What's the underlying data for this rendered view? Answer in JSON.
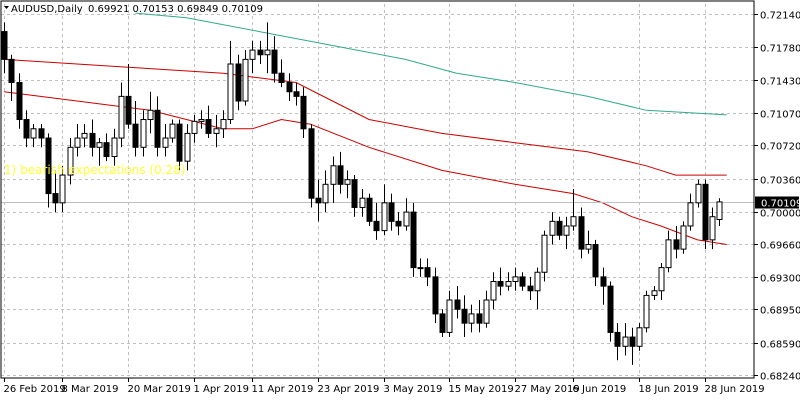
{
  "window": {
    "title_symbol": "AUDUSD,Daily",
    "ohlc_text": "0.69921 0.70153 0.69849 0.70109"
  },
  "indicator_text": "1) bearish expectations (0.28)",
  "current_price_label": "0.70109",
  "colors": {
    "background": "#ffffff",
    "grid": "#c0c0c0",
    "frame": "#000000",
    "bull_fill": "#ffffff",
    "bear_fill": "#000000",
    "candle_stroke": "#000000",
    "ma_fast": "#cc0000",
    "ma_mid": "#cc0000",
    "ma_slow": "#33aa88",
    "indicator_text": "#ffff33",
    "price_line": "#c0c0c0"
  },
  "chart_data": {
    "type": "candlestick",
    "y_ticks": [
      "0.72140",
      "0.71780",
      "0.71430",
      "0.71070",
      "0.70720",
      "0.70360",
      "0.70000",
      "0.69660",
      "0.69300",
      "0.68950",
      "0.68590",
      "0.68240"
    ],
    "ylim": [
      0.6824,
      0.7214
    ],
    "x_tick_labels": [
      "26 Feb 2019",
      "8 Mar 2019",
      "20 Mar 2019",
      "1 Apr 2019",
      "11 Apr 2019",
      "23 Apr 2019",
      "3 May 2019",
      "15 May 2019",
      "27 May 2019",
      "6 Jun 2019",
      "18 Jun 2019",
      "28 Jun 2019"
    ],
    "x_tick_bar_index": [
      0,
      8,
      17,
      26,
      34,
      43,
      52,
      61,
      70,
      78,
      87,
      96
    ],
    "candles": [
      {
        "o": 0.7195,
        "h": 0.7205,
        "l": 0.715,
        "c": 0.7165
      },
      {
        "o": 0.7165,
        "h": 0.717,
        "l": 0.712,
        "c": 0.714
      },
      {
        "o": 0.714,
        "h": 0.715,
        "l": 0.709,
        "c": 0.71
      },
      {
        "o": 0.71,
        "h": 0.711,
        "l": 0.707,
        "c": 0.708
      },
      {
        "o": 0.708,
        "h": 0.7095,
        "l": 0.707,
        "c": 0.709
      },
      {
        "o": 0.709,
        "h": 0.7095,
        "l": 0.707,
        "c": 0.708
      },
      {
        "o": 0.708,
        "h": 0.7085,
        "l": 0.7005,
        "c": 0.702
      },
      {
        "o": 0.702,
        "h": 0.7045,
        "l": 0.7,
        "c": 0.701
      },
      {
        "o": 0.701,
        "h": 0.705,
        "l": 0.7,
        "c": 0.704
      },
      {
        "o": 0.704,
        "h": 0.708,
        "l": 0.703,
        "c": 0.707
      },
      {
        "o": 0.707,
        "h": 0.7095,
        "l": 0.706,
        "c": 0.708
      },
      {
        "o": 0.708,
        "h": 0.7095,
        "l": 0.707,
        "c": 0.7085
      },
      {
        "o": 0.7085,
        "h": 0.71,
        "l": 0.706,
        "c": 0.707
      },
      {
        "o": 0.707,
        "h": 0.708,
        "l": 0.705,
        "c": 0.7075
      },
      {
        "o": 0.7075,
        "h": 0.7085,
        "l": 0.7055,
        "c": 0.706
      },
      {
        "o": 0.706,
        "h": 0.709,
        "l": 0.705,
        "c": 0.708
      },
      {
        "o": 0.708,
        "h": 0.714,
        "l": 0.707,
        "c": 0.7125
      },
      {
        "o": 0.7125,
        "h": 0.716,
        "l": 0.709,
        "c": 0.7095
      },
      {
        "o": 0.7095,
        "h": 0.712,
        "l": 0.706,
        "c": 0.707
      },
      {
        "o": 0.707,
        "h": 0.711,
        "l": 0.706,
        "c": 0.71
      },
      {
        "o": 0.71,
        "h": 0.713,
        "l": 0.7085,
        "c": 0.711
      },
      {
        "o": 0.711,
        "h": 0.7125,
        "l": 0.706,
        "c": 0.707
      },
      {
        "o": 0.707,
        "h": 0.7095,
        "l": 0.706,
        "c": 0.708
      },
      {
        "o": 0.708,
        "h": 0.71,
        "l": 0.7075,
        "c": 0.7095
      },
      {
        "o": 0.7095,
        "h": 0.71,
        "l": 0.7045,
        "c": 0.7055
      },
      {
        "o": 0.7055,
        "h": 0.7095,
        "l": 0.7045,
        "c": 0.7085
      },
      {
        "o": 0.7085,
        "h": 0.7105,
        "l": 0.7075,
        "c": 0.7098
      },
      {
        "o": 0.7098,
        "h": 0.711,
        "l": 0.709,
        "c": 0.71
      },
      {
        "o": 0.71,
        "h": 0.7115,
        "l": 0.708,
        "c": 0.7085
      },
      {
        "o": 0.7085,
        "h": 0.7105,
        "l": 0.707,
        "c": 0.709
      },
      {
        "o": 0.709,
        "h": 0.711,
        "l": 0.708,
        "c": 0.71
      },
      {
        "o": 0.71,
        "h": 0.7185,
        "l": 0.7095,
        "c": 0.716
      },
      {
        "o": 0.716,
        "h": 0.717,
        "l": 0.711,
        "c": 0.712
      },
      {
        "o": 0.712,
        "h": 0.7175,
        "l": 0.7115,
        "c": 0.7165
      },
      {
        "o": 0.7165,
        "h": 0.7185,
        "l": 0.715,
        "c": 0.7175
      },
      {
        "o": 0.7175,
        "h": 0.7185,
        "l": 0.716,
        "c": 0.717
      },
      {
        "o": 0.717,
        "h": 0.7205,
        "l": 0.715,
        "c": 0.7175
      },
      {
        "o": 0.7175,
        "h": 0.719,
        "l": 0.714,
        "c": 0.715
      },
      {
        "o": 0.715,
        "h": 0.7165,
        "l": 0.7135,
        "c": 0.714
      },
      {
        "o": 0.714,
        "h": 0.715,
        "l": 0.712,
        "c": 0.713
      },
      {
        "o": 0.713,
        "h": 0.714,
        "l": 0.7115,
        "c": 0.7125
      },
      {
        "o": 0.7125,
        "h": 0.7135,
        "l": 0.708,
        "c": 0.709
      },
      {
        "o": 0.709,
        "h": 0.7095,
        "l": 0.7005,
        "c": 0.7015
      },
      {
        "o": 0.7015,
        "h": 0.7035,
        "l": 0.699,
        "c": 0.701
      },
      {
        "o": 0.701,
        "h": 0.7045,
        "l": 0.7,
        "c": 0.703
      },
      {
        "o": 0.703,
        "h": 0.706,
        "l": 0.701,
        "c": 0.705
      },
      {
        "o": 0.705,
        "h": 0.7065,
        "l": 0.702,
        "c": 0.703
      },
      {
        "o": 0.703,
        "h": 0.7045,
        "l": 0.7015,
        "c": 0.7035
      },
      {
        "o": 0.7035,
        "h": 0.704,
        "l": 0.6995,
        "c": 0.7005
      },
      {
        "o": 0.7005,
        "h": 0.7025,
        "l": 0.6995,
        "c": 0.7015
      },
      {
        "o": 0.7015,
        "h": 0.702,
        "l": 0.6985,
        "c": 0.699
      },
      {
        "o": 0.699,
        "h": 0.701,
        "l": 0.697,
        "c": 0.698
      },
      {
        "o": 0.698,
        "h": 0.703,
        "l": 0.6975,
        "c": 0.701
      },
      {
        "o": 0.701,
        "h": 0.702,
        "l": 0.698,
        "c": 0.699
      },
      {
        "o": 0.699,
        "h": 0.7,
        "l": 0.6975,
        "c": 0.6985
      },
      {
        "o": 0.6985,
        "h": 0.7015,
        "l": 0.698,
        "c": 0.7
      },
      {
        "o": 0.7,
        "h": 0.701,
        "l": 0.693,
        "c": 0.694
      },
      {
        "o": 0.694,
        "h": 0.695,
        "l": 0.693,
        "c": 0.694
      },
      {
        "o": 0.694,
        "h": 0.695,
        "l": 0.692,
        "c": 0.693
      },
      {
        "o": 0.693,
        "h": 0.694,
        "l": 0.688,
        "c": 0.689
      },
      {
        "o": 0.689,
        "h": 0.6895,
        "l": 0.6865,
        "c": 0.687
      },
      {
        "o": 0.687,
        "h": 0.6915,
        "l": 0.6865,
        "c": 0.6905
      },
      {
        "o": 0.6905,
        "h": 0.692,
        "l": 0.6885,
        "c": 0.6895
      },
      {
        "o": 0.6895,
        "h": 0.691,
        "l": 0.6865,
        "c": 0.688
      },
      {
        "o": 0.688,
        "h": 0.69,
        "l": 0.687,
        "c": 0.689
      },
      {
        "o": 0.689,
        "h": 0.6905,
        "l": 0.687,
        "c": 0.688
      },
      {
        "o": 0.688,
        "h": 0.6915,
        "l": 0.6875,
        "c": 0.6905
      },
      {
        "o": 0.6905,
        "h": 0.6935,
        "l": 0.6895,
        "c": 0.6925
      },
      {
        "o": 0.6925,
        "h": 0.694,
        "l": 0.691,
        "c": 0.692
      },
      {
        "o": 0.692,
        "h": 0.6935,
        "l": 0.6915,
        "c": 0.6925
      },
      {
        "o": 0.6925,
        "h": 0.694,
        "l": 0.6915,
        "c": 0.693
      },
      {
        "o": 0.693,
        "h": 0.6935,
        "l": 0.6915,
        "c": 0.692
      },
      {
        "o": 0.692,
        "h": 0.693,
        "l": 0.6905,
        "c": 0.6915
      },
      {
        "o": 0.6915,
        "h": 0.694,
        "l": 0.6895,
        "c": 0.6935
      },
      {
        "o": 0.6935,
        "h": 0.698,
        "l": 0.6925,
        "c": 0.6975
      },
      {
        "o": 0.6975,
        "h": 0.7,
        "l": 0.6965,
        "c": 0.699
      },
      {
        "o": 0.699,
        "h": 0.6995,
        "l": 0.697,
        "c": 0.6975
      },
      {
        "o": 0.6975,
        "h": 0.6995,
        "l": 0.696,
        "c": 0.6985
      },
      {
        "o": 0.6985,
        "h": 0.7025,
        "l": 0.698,
        "c": 0.6995
      },
      {
        "o": 0.6995,
        "h": 0.7005,
        "l": 0.695,
        "c": 0.696
      },
      {
        "o": 0.696,
        "h": 0.698,
        "l": 0.6955,
        "c": 0.6965
      },
      {
        "o": 0.6965,
        "h": 0.697,
        "l": 0.692,
        "c": 0.693
      },
      {
        "o": 0.693,
        "h": 0.694,
        "l": 0.69,
        "c": 0.692
      },
      {
        "o": 0.692,
        "h": 0.6925,
        "l": 0.686,
        "c": 0.687
      },
      {
        "o": 0.687,
        "h": 0.688,
        "l": 0.684,
        "c": 0.6855
      },
      {
        "o": 0.6855,
        "h": 0.688,
        "l": 0.6845,
        "c": 0.6865
      },
      {
        "o": 0.6865,
        "h": 0.6875,
        "l": 0.6835,
        "c": 0.6855
      },
      {
        "o": 0.6855,
        "h": 0.688,
        "l": 0.685,
        "c": 0.6875
      },
      {
        "o": 0.6875,
        "h": 0.6915,
        "l": 0.687,
        "c": 0.691
      },
      {
        "o": 0.691,
        "h": 0.692,
        "l": 0.6905,
        "c": 0.6915
      },
      {
        "o": 0.6915,
        "h": 0.6945,
        "l": 0.6905,
        "c": 0.694
      },
      {
        "o": 0.694,
        "h": 0.698,
        "l": 0.6935,
        "c": 0.697
      },
      {
        "o": 0.697,
        "h": 0.6985,
        "l": 0.695,
        "c": 0.696
      },
      {
        "o": 0.696,
        "h": 0.699,
        "l": 0.6955,
        "c": 0.6985
      },
      {
        "o": 0.6985,
        "h": 0.702,
        "l": 0.698,
        "c": 0.701
      },
      {
        "o": 0.701,
        "h": 0.7035,
        "l": 0.7005,
        "c": 0.703
      },
      {
        "o": 0.703,
        "h": 0.7035,
        "l": 0.696,
        "c": 0.697
      },
      {
        "o": 0.697,
        "h": 0.7005,
        "l": 0.696,
        "c": 0.6995
      },
      {
        "o": 0.6992,
        "h": 0.7015,
        "l": 0.6985,
        "c": 0.7011
      }
    ],
    "moving_averages": [
      {
        "key": "ma_fast",
        "points": [
          [
            0,
            0.713
          ],
          [
            10,
            0.712
          ],
          [
            20,
            0.711
          ],
          [
            25,
            0.71
          ],
          [
            30,
            0.709
          ],
          [
            34,
            0.709
          ],
          [
            38,
            0.71
          ],
          [
            42,
            0.7095
          ],
          [
            50,
            0.707
          ],
          [
            60,
            0.7045
          ],
          [
            70,
            0.703
          ],
          [
            78,
            0.702
          ],
          [
            82,
            0.701
          ],
          [
            86,
            0.6995
          ],
          [
            90,
            0.6985
          ],
          [
            95,
            0.697
          ],
          [
            99,
            0.6965
          ]
        ]
      },
      {
        "key": "ma_mid",
        "points": [
          [
            0,
            0.7165
          ],
          [
            10,
            0.716
          ],
          [
            20,
            0.7155
          ],
          [
            30,
            0.715
          ],
          [
            35,
            0.7145
          ],
          [
            40,
            0.714
          ],
          [
            45,
            0.712
          ],
          [
            50,
            0.71
          ],
          [
            60,
            0.7085
          ],
          [
            70,
            0.7075
          ],
          [
            80,
            0.7065
          ],
          [
            88,
            0.705
          ],
          [
            92,
            0.704
          ],
          [
            96,
            0.704
          ],
          [
            99,
            0.704
          ]
        ]
      },
      {
        "key": "ma_slow",
        "points": [
          [
            18,
            0.7215
          ],
          [
            25,
            0.721
          ],
          [
            35,
            0.7195
          ],
          [
            45,
            0.718
          ],
          [
            55,
            0.7165
          ],
          [
            62,
            0.715
          ],
          [
            70,
            0.714
          ],
          [
            80,
            0.7125
          ],
          [
            88,
            0.711
          ],
          [
            99,
            0.7105
          ]
        ]
      }
    ]
  }
}
